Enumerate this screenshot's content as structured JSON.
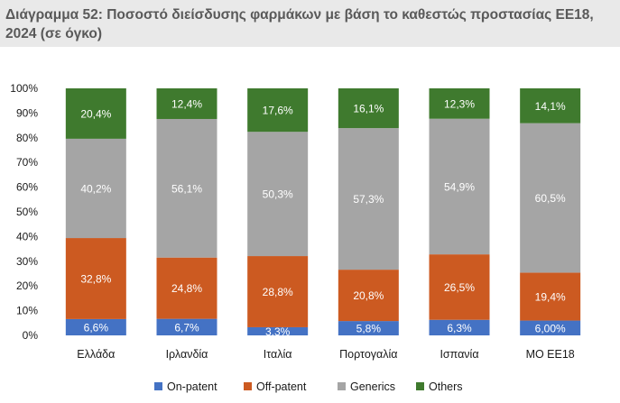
{
  "header": {
    "title": "Διάγραμμα 52: Ποσοστό διείσδυσης φαρμάκων με βάση το καθεστώς προστασίας ΕΕ18, 2024 (σε όγκο)"
  },
  "colors": {
    "on_patent": "#4472c4",
    "off_patent": "#cc5a21",
    "generics": "#a5a5a5",
    "others": "#3f7a2e",
    "title_band": "#e9e9e9",
    "title_text": "#595959"
  },
  "chart_data": {
    "type": "bar",
    "stacked": true,
    "percent": true,
    "title": "Διάγραμμα 52: Ποσοστό διείσδυσης φαρμάκων με βάση το καθεστώς προστασίας ΕΕ18, 2024 (σε όγκο)",
    "categories": [
      "Ελλάδα",
      "Ιρλανδία",
      "Ιταλία",
      "Πορτογαλία",
      "Ισπανία",
      "ΜΟ ΕΕ18"
    ],
    "ylim": [
      0,
      100
    ],
    "yticks": [
      "0%",
      "10%",
      "20%",
      "30%",
      "40%",
      "50%",
      "60%",
      "70%",
      "80%",
      "90%",
      "100%"
    ],
    "legend_position": "bottom",
    "grid": false,
    "series": [
      {
        "name": "On-patent",
        "color": "#4472c4",
        "values": [
          6.6,
          6.7,
          3.3,
          5.8,
          6.3,
          6.0
        ],
        "labels": [
          "6,6%",
          "6,7%",
          "3,3%",
          "5,8%",
          "6,3%",
          "6,00%"
        ]
      },
      {
        "name": "Off-patent",
        "color": "#cc5a21",
        "values": [
          32.8,
          24.8,
          28.8,
          20.8,
          26.5,
          19.4
        ],
        "labels": [
          "32,8%",
          "24,8%",
          "28,8%",
          "20,8%",
          "26,5%",
          "19,4%"
        ]
      },
      {
        "name": "Generics",
        "color": "#a5a5a5",
        "values": [
          40.2,
          56.1,
          50.3,
          57.3,
          54.9,
          60.5
        ],
        "labels": [
          "40,2%",
          "56,1%",
          "50,3%",
          "57,3%",
          "54,9%",
          "60,5%"
        ]
      },
      {
        "name": "Others",
        "color": "#3f7a2e",
        "values": [
          20.4,
          12.4,
          17.6,
          16.1,
          12.3,
          14.1
        ],
        "labels": [
          "20,4%",
          "12,4%",
          "17,6%",
          "16,1%",
          "12,3%",
          "14,1%"
        ]
      }
    ]
  }
}
